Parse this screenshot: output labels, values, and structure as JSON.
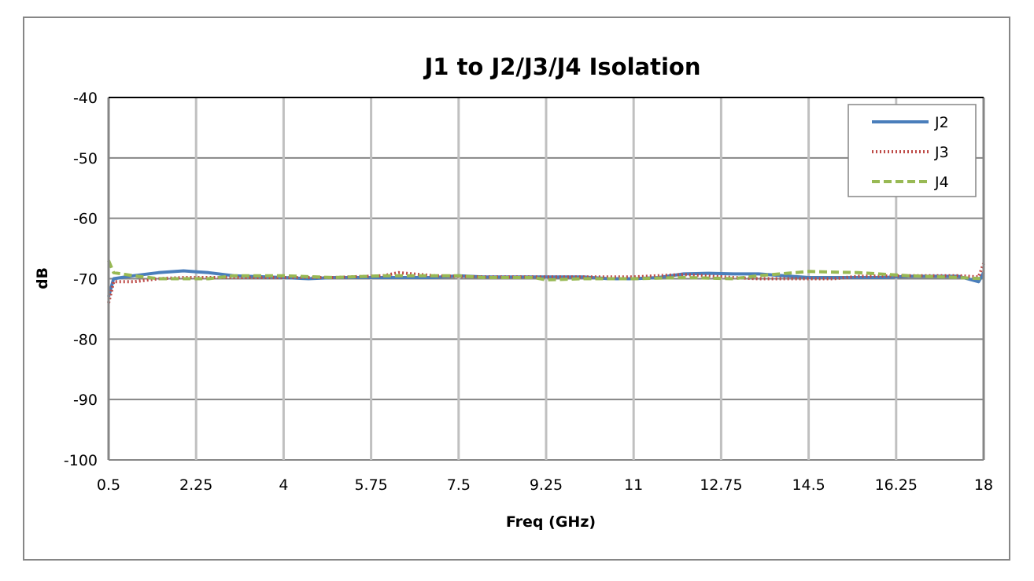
{
  "chart_data": {
    "type": "line",
    "title": "J1 to J2/J3/J4 Isolation",
    "xlabel": "Freq (GHz)",
    "ylabel": "dB",
    "xlim": [
      0.5,
      18
    ],
    "ylim": [
      -100,
      -40
    ],
    "xticks": [
      0.5,
      2.25,
      4,
      5.75,
      7.5,
      9.25,
      11,
      12.75,
      14.5,
      16.25,
      18
    ],
    "yticks": [
      -40,
      -50,
      -60,
      -70,
      -80,
      -90,
      -100
    ],
    "grid": true,
    "legend": "top-right",
    "series": [
      {
        "name": "J2",
        "color": "#4a7ebb",
        "style": "solid",
        "x": [
          0.5,
          0.6,
          1,
          1.5,
          2,
          2.5,
          3,
          4,
          4.5,
          5,
          6,
          7,
          7.5,
          8,
          9,
          10,
          10.5,
          11,
          11.5,
          12,
          12.5,
          13,
          13.5,
          14,
          14.5,
          15,
          16,
          16.5,
          17,
          17.5,
          17.9,
          18
        ],
        "y": [
          -73,
          -70,
          -69.5,
          -69,
          -68.7,
          -69,
          -69.5,
          -69.8,
          -70,
          -69.8,
          -69.8,
          -69.8,
          -69.5,
          -69.7,
          -69.7,
          -69.7,
          -70,
          -70,
          -69.8,
          -69.2,
          -69.1,
          -69.2,
          -69.2,
          -69.5,
          -69.8,
          -69.8,
          -69.8,
          -69.6,
          -69.6,
          -69.6,
          -70.5,
          -69
        ]
      },
      {
        "name": "J3",
        "color": "#be4b48",
        "style": "dotted",
        "x": [
          0.5,
          0.6,
          1,
          1.5,
          2,
          3,
          4,
          5,
          6,
          6.3,
          7,
          8,
          9,
          10,
          11,
          11.5,
          12,
          13,
          13.5,
          14,
          15,
          15.5,
          16.5,
          17.5,
          17.9,
          18
        ],
        "y": [
          -74,
          -70.5,
          -70.5,
          -70,
          -69.8,
          -69.8,
          -69.8,
          -69.8,
          -69.5,
          -69,
          -69.5,
          -69.7,
          -69.7,
          -69.7,
          -69.7,
          -69.5,
          -69.3,
          -69.8,
          -70,
          -70,
          -70,
          -69.6,
          -69.5,
          -69.5,
          -69.7,
          -67.5
        ]
      },
      {
        "name": "J4",
        "color": "#98b954",
        "style": "dashed",
        "x": [
          0.5,
          0.6,
          1,
          1.5,
          2,
          2.5,
          3,
          4,
          5,
          6,
          7,
          7.5,
          8,
          9,
          9.25,
          10,
          11,
          12,
          13,
          13.5,
          14.5,
          15.5,
          16.5,
          17.5,
          18
        ],
        "y": [
          -67,
          -69,
          -69.5,
          -70,
          -70,
          -70,
          -69.5,
          -69.5,
          -69.8,
          -69.5,
          -69.5,
          -69.5,
          -69.8,
          -69.8,
          -70.2,
          -70,
          -70,
          -69.8,
          -70,
          -69.5,
          -68.8,
          -69,
          -69.5,
          -69.8,
          -70
        ]
      }
    ]
  }
}
